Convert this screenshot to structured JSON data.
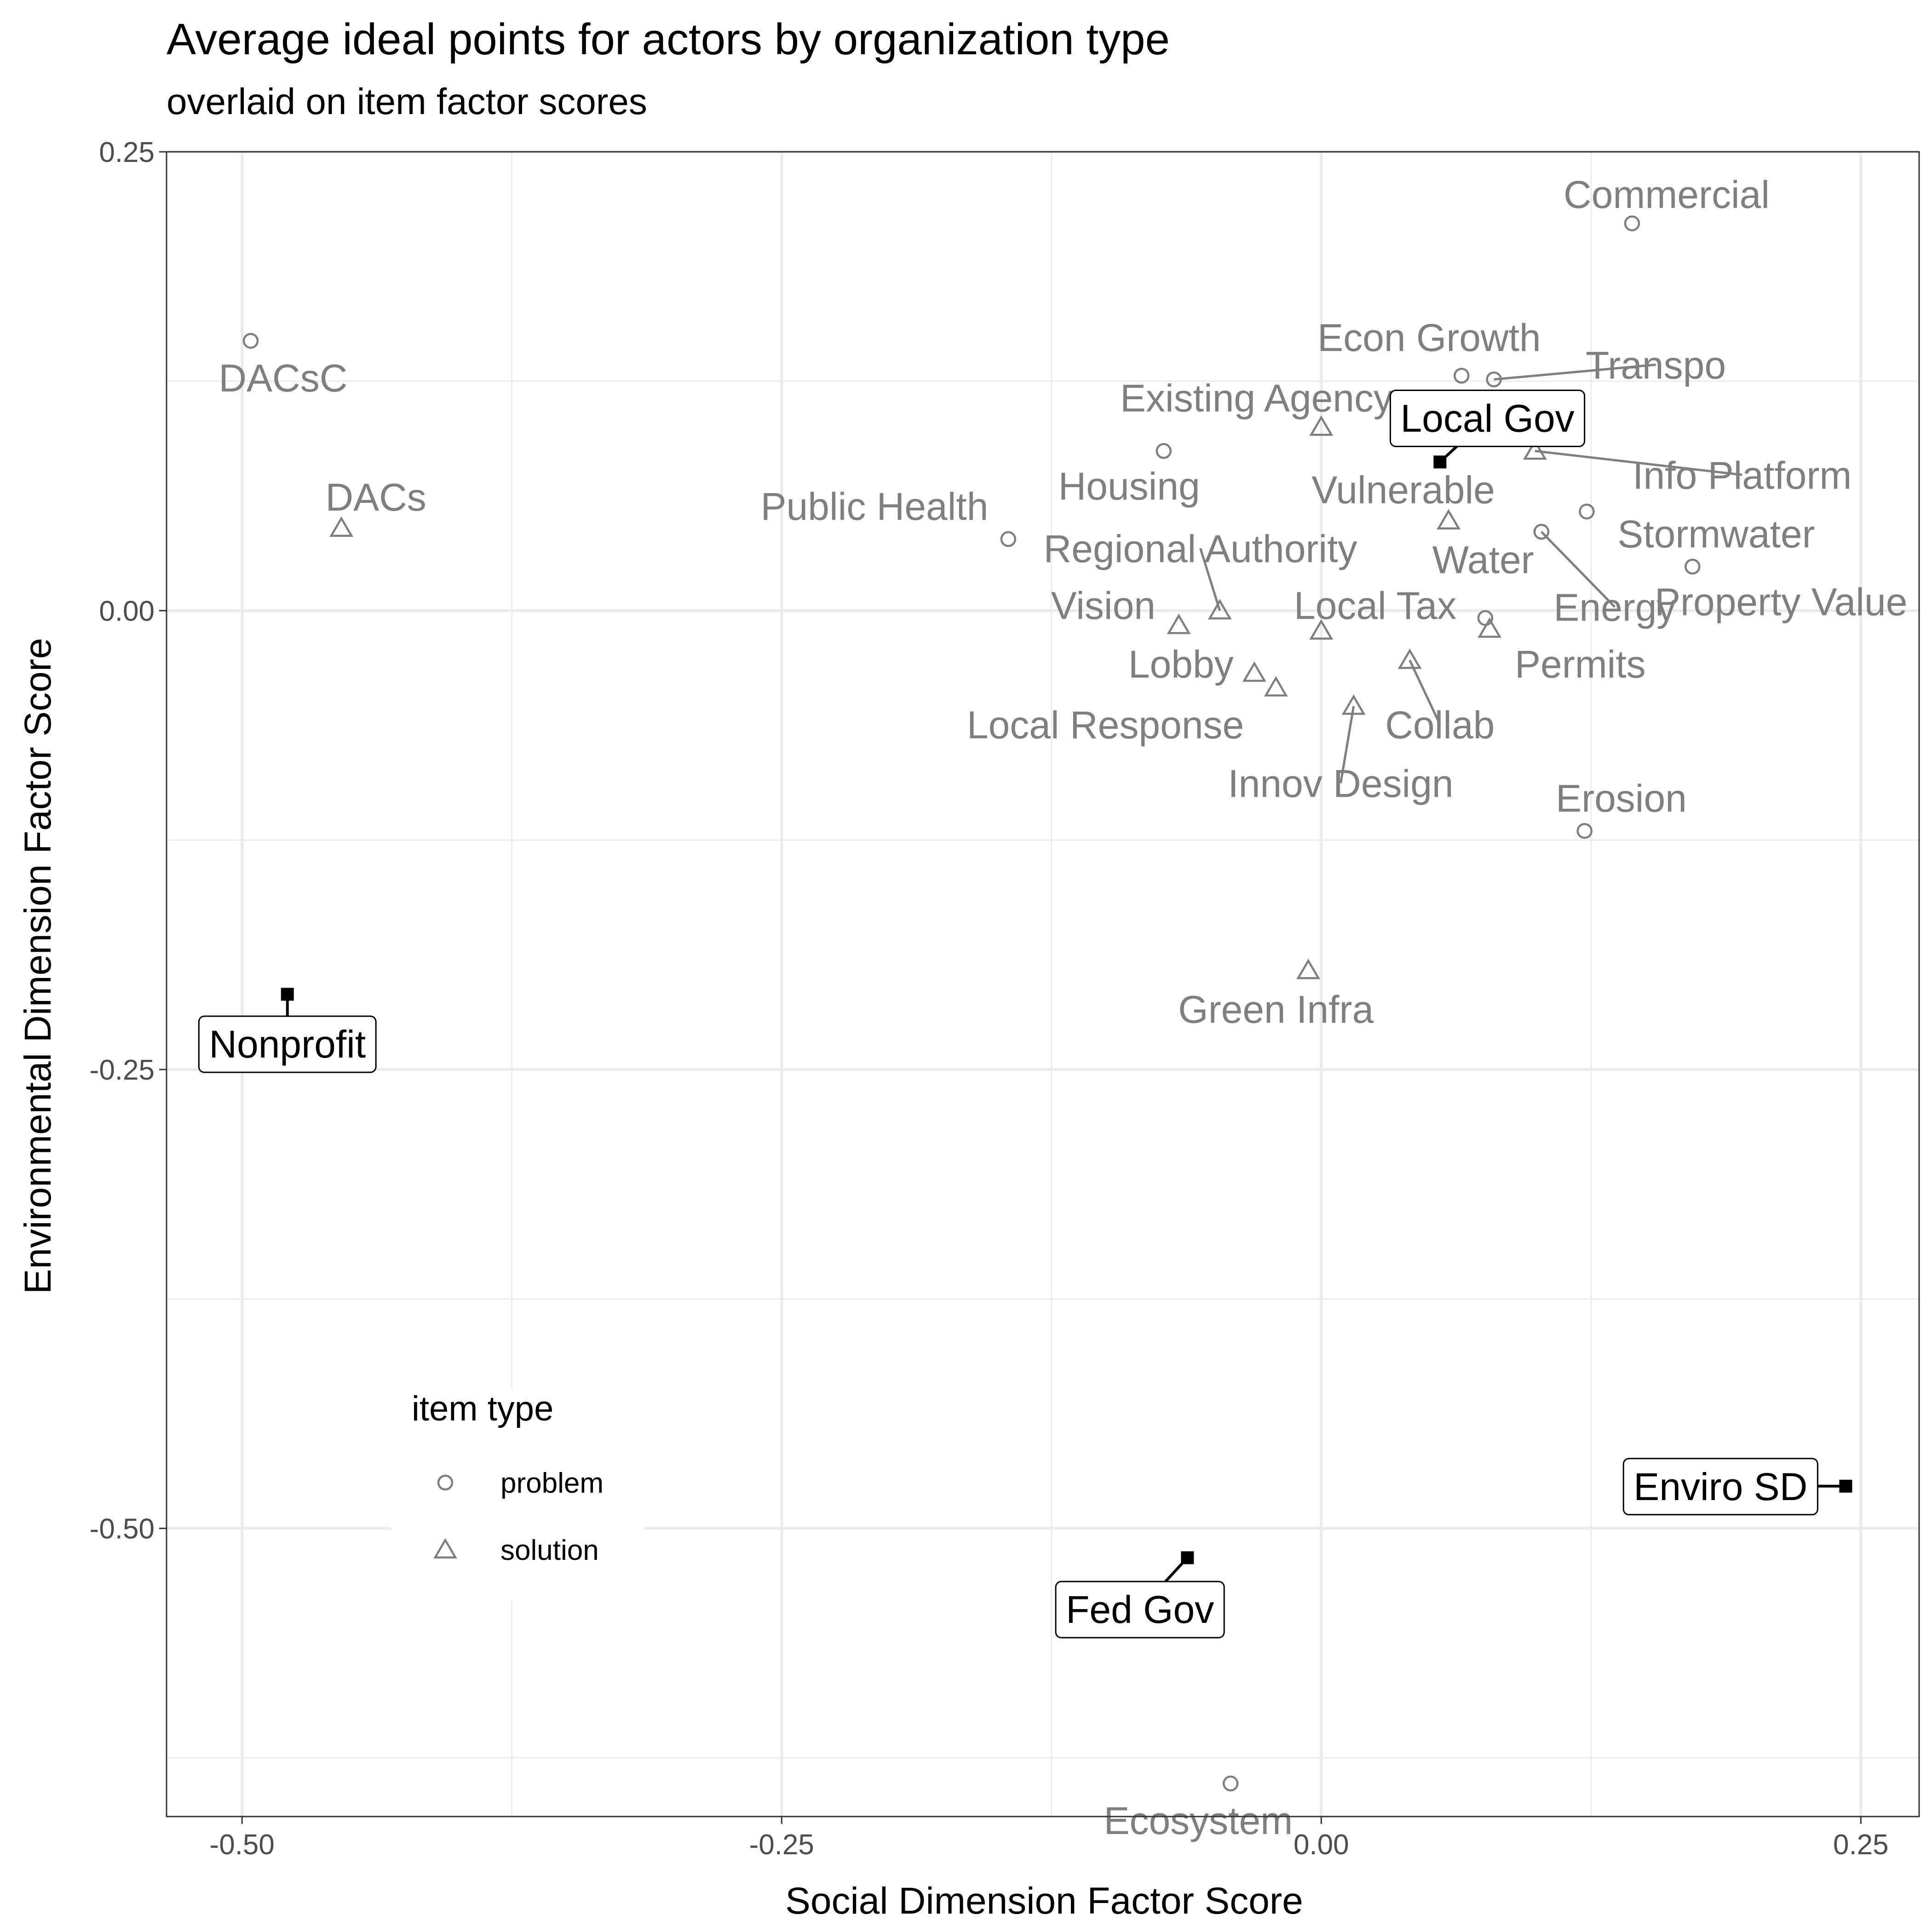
{
  "chart_data": {
    "type": "scatter",
    "title": "Average ideal points for actors by organization type",
    "subtitle": "overlaid on item factor scores",
    "xlabel": "Social Dimension Factor Score",
    "ylabel": "Environmental Dimension Factor Score",
    "xlim": [
      -0.535,
      0.277
    ],
    "ylim": [
      -0.657,
      0.25
    ],
    "xticks": [
      -0.5,
      -0.25,
      0.0,
      0.25
    ],
    "xtick_labels": [
      "-0.50",
      "-0.25",
      "0.00",
      "0.25"
    ],
    "yticks": [
      0.25,
      0.0,
      -0.25,
      -0.5
    ],
    "ytick_labels": [
      "0.25",
      "0.00",
      "-0.25",
      "-0.50"
    ],
    "grid": true,
    "legend": {
      "title": "item type",
      "placement": "bottom-left inside",
      "entries": [
        {
          "label": "problem",
          "shape": "circle"
        },
        {
          "label": "solution",
          "shape": "triangle"
        }
      ]
    },
    "colors": {
      "items": "#7f7f7f",
      "actors": "#000000",
      "grid": "#ebebeb",
      "panel_border": "#333333"
    },
    "items": [
      {
        "label": "Commercial",
        "type": "problem",
        "x": 0.144,
        "y": 0.211,
        "lx": 0.16,
        "ly": 0.227,
        "leader": false
      },
      {
        "label": "DACsC",
        "type": "problem",
        "x": -0.496,
        "y": 0.147,
        "lx": -0.481,
        "ly": 0.127,
        "leader": false
      },
      {
        "label": "Econ Growth",
        "type": "problem",
        "x": 0.065,
        "y": 0.128,
        "lx": 0.05,
        "ly": 0.149,
        "leader": false
      },
      {
        "label": "Transpo",
        "type": "problem",
        "x": 0.08,
        "y": 0.126,
        "lx": 0.155,
        "ly": 0.134,
        "leader": true
      },
      {
        "label": "Existing Agency",
        "type": "solution",
        "x": 0.0,
        "y": 0.1,
        "lx": -0.03,
        "ly": 0.116,
        "leader": false
      },
      {
        "label": "Housing",
        "type": "problem",
        "x": -0.073,
        "y": 0.087,
        "lx": -0.089,
        "ly": 0.068,
        "leader": false
      },
      {
        "label": "Info Platform",
        "type": "solution",
        "x": 0.099,
        "y": 0.087,
        "lx": 0.195,
        "ly": 0.074,
        "leader": true
      },
      {
        "label": "DACs",
        "type": "solution",
        "x": -0.454,
        "y": 0.045,
        "lx": -0.438,
        "ly": 0.062,
        "leader": false
      },
      {
        "label": "Vulnerable",
        "type": "solution",
        "x": 0.059,
        "y": 0.049,
        "lx": 0.038,
        "ly": 0.066,
        "leader": false
      },
      {
        "label": "Public Health",
        "type": "problem",
        "x": -0.145,
        "y": 0.039,
        "lx": -0.207,
        "ly": 0.057,
        "leader": false
      },
      {
        "label": "Stormwater",
        "type": "problem",
        "x": 0.123,
        "y": 0.054,
        "lx": 0.183,
        "ly": 0.042,
        "leader": false
      },
      {
        "label": "Water",
        "type": "problem",
        "x": 0.102,
        "y": 0.043,
        "lx": 0.075,
        "ly": 0.028,
        "leader": false
      },
      {
        "label": "Regional Authority",
        "type": "solution",
        "x": -0.047,
        "y": 0.0,
        "lx": -0.056,
        "ly": 0.034,
        "leader": true
      },
      {
        "label": "Property Value",
        "type": "problem",
        "x": 0.172,
        "y": 0.024,
        "lx": 0.213,
        "ly": 0.005,
        "leader": false
      },
      {
        "label": "Energy",
        "type": "problem",
        "x": 0.102,
        "y": 0.043,
        "lx": 0.136,
        "ly": 0.002,
        "leader": true
      },
      {
        "label": "Local Tax",
        "type": "solution",
        "x": 0.0,
        "y": -0.011,
        "lx": 0.025,
        "ly": 0.003,
        "leader": false
      },
      {
        "label": "Vision",
        "type": "solution",
        "x": -0.066,
        "y": -0.008,
        "lx": -0.101,
        "ly": 0.003,
        "leader": false
      },
      {
        "label": "Permits",
        "type": "problem",
        "x": 0.076,
        "y": -0.004,
        "lx": 0.12,
        "ly": -0.029,
        "leader": false
      },
      {
        "label": "Permits",
        "type": "solution",
        "x": 0.078,
        "y": -0.01,
        "lx": 0.12,
        "ly": -0.029,
        "leader": false,
        "hidden": true
      },
      {
        "label": "Lobby",
        "type": "solution",
        "x": -0.031,
        "y": -0.034,
        "lx": -0.065,
        "ly": -0.029,
        "leader": false
      },
      {
        "label": "Collab",
        "type": "solution",
        "x": 0.041,
        "y": -0.027,
        "lx": 0.055,
        "ly": -0.062,
        "leader": true
      },
      {
        "label": "Local Response",
        "type": "solution",
        "x": -0.021,
        "y": -0.042,
        "lx": -0.1,
        "ly": -0.062,
        "leader": false
      },
      {
        "label": "Innov Design",
        "type": "solution",
        "x": 0.015,
        "y": -0.052,
        "lx": 0.009,
        "ly": -0.094,
        "leader": true
      },
      {
        "label": "Erosion",
        "type": "problem",
        "x": 0.122,
        "y": -0.12,
        "lx": 0.139,
        "ly": -0.102,
        "leader": false
      },
      {
        "label": "Green Infra",
        "type": "solution",
        "x": -0.006,
        "y": -0.196,
        "lx": -0.021,
        "ly": -0.217,
        "leader": false
      },
      {
        "label": "Ecosystem",
        "type": "problem",
        "x": -0.042,
        "y": -0.639,
        "lx": -0.057,
        "ly": -0.659,
        "leader": false
      }
    ],
    "actors": [
      {
        "label": "Local Gov",
        "x": 0.055,
        "y": 0.081,
        "lx": 0.077,
        "ly": 0.105
      },
      {
        "label": "Nonprofit",
        "x": -0.479,
        "y": -0.209,
        "lx": -0.479,
        "ly": -0.236
      },
      {
        "label": "Enviro SD",
        "x": 0.243,
        "y": -0.477,
        "lx": 0.185,
        "ly": -0.477
      },
      {
        "label": "Fed Gov",
        "x": -0.062,
        "y": -0.516,
        "lx": -0.084,
        "ly": -0.544
      }
    ]
  }
}
